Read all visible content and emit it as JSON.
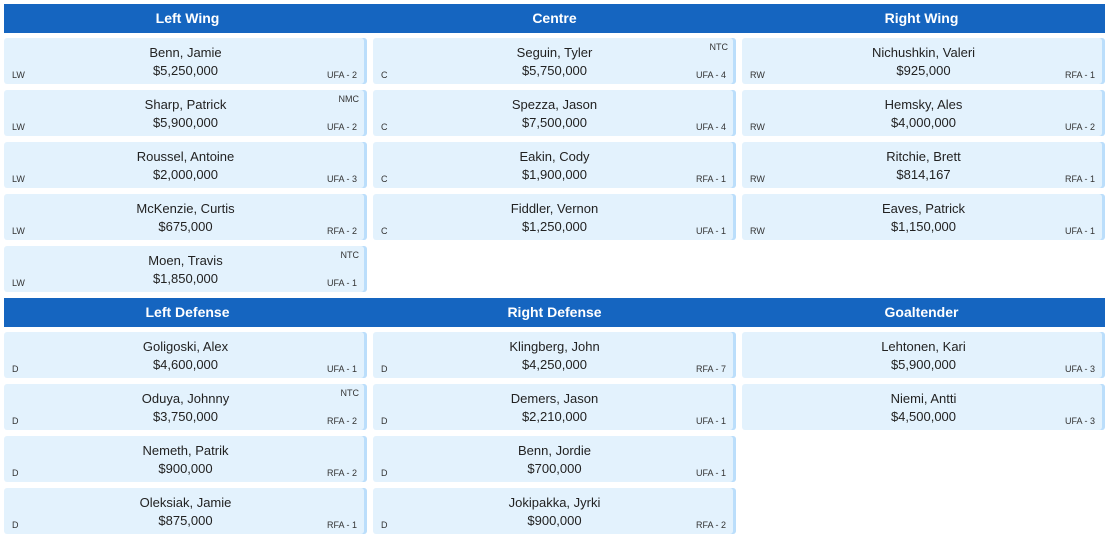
{
  "forwards": {
    "headers": [
      "Left Wing",
      "Centre",
      "Right Wing"
    ],
    "columns": [
      [
        {
          "name": "Benn, Jamie",
          "salary": "$5,250,000",
          "pos": "LW",
          "contract": "UFA - 2",
          "clause": ""
        },
        {
          "name": "Sharp, Patrick",
          "salary": "$5,900,000",
          "pos": "LW",
          "contract": "UFA - 2",
          "clause": "NMC"
        },
        {
          "name": "Roussel, Antoine",
          "salary": "$2,000,000",
          "pos": "LW",
          "contract": "UFA - 3",
          "clause": ""
        },
        {
          "name": "McKenzie, Curtis",
          "salary": "$675,000",
          "pos": "LW",
          "contract": "RFA - 2",
          "clause": ""
        },
        {
          "name": "Moen, Travis",
          "salary": "$1,850,000",
          "pos": "LW",
          "contract": "UFA - 1",
          "clause": "NTC"
        }
      ],
      [
        {
          "name": "Seguin, Tyler",
          "salary": "$5,750,000",
          "pos": "C",
          "contract": "UFA - 4",
          "clause": "NTC"
        },
        {
          "name": "Spezza, Jason",
          "salary": "$7,500,000",
          "pos": "C",
          "contract": "UFA - 4",
          "clause": ""
        },
        {
          "name": "Eakin, Cody",
          "salary": "$1,900,000",
          "pos": "C",
          "contract": "RFA - 1",
          "clause": ""
        },
        {
          "name": "Fiddler, Vernon",
          "salary": "$1,250,000",
          "pos": "C",
          "contract": "UFA - 1",
          "clause": ""
        }
      ],
      [
        {
          "name": "Nichushkin, Valeri",
          "salary": "$925,000",
          "pos": "RW",
          "contract": "RFA - 1",
          "clause": ""
        },
        {
          "name": "Hemsky, Ales",
          "salary": "$4,000,000",
          "pos": "RW",
          "contract": "UFA - 2",
          "clause": ""
        },
        {
          "name": "Ritchie, Brett",
          "salary": "$814,167",
          "pos": "RW",
          "contract": "RFA - 1",
          "clause": ""
        },
        {
          "name": "Eaves, Patrick",
          "salary": "$1,150,000",
          "pos": "RW",
          "contract": "UFA - 1",
          "clause": ""
        }
      ]
    ]
  },
  "defense": {
    "headers": [
      "Left Defense",
      "Right Defense",
      "Goaltender"
    ],
    "columns": [
      [
        {
          "name": "Goligoski, Alex",
          "salary": "$4,600,000",
          "pos": "D",
          "contract": "UFA - 1",
          "clause": ""
        },
        {
          "name": "Oduya, Johnny",
          "salary": "$3,750,000",
          "pos": "D",
          "contract": "RFA - 2",
          "clause": "NTC"
        },
        {
          "name": "Nemeth, Patrik",
          "salary": "$900,000",
          "pos": "D",
          "contract": "RFA - 2",
          "clause": ""
        },
        {
          "name": "Oleksiak, Jamie",
          "salary": "$875,000",
          "pos": "D",
          "contract": "RFA - 1",
          "clause": ""
        }
      ],
      [
        {
          "name": "Klingberg, John",
          "salary": "$4,250,000",
          "pos": "D",
          "contract": "RFA - 7",
          "clause": ""
        },
        {
          "name": "Demers, Jason",
          "salary": "$2,210,000",
          "pos": "D",
          "contract": "UFA - 1",
          "clause": ""
        },
        {
          "name": "Benn, Jordie",
          "salary": "$700,000",
          "pos": "D",
          "contract": "UFA - 1",
          "clause": ""
        },
        {
          "name": "Jokipakka, Jyrki",
          "salary": "$900,000",
          "pos": "D",
          "contract": "RFA - 2",
          "clause": ""
        }
      ],
      [
        {
          "name": "Lehtonen, Kari",
          "salary": "$5,900,000",
          "pos": "",
          "contract": "UFA - 3",
          "clause": ""
        },
        {
          "name": "Niemi, Antti",
          "salary": "$4,500,000",
          "pos": "",
          "contract": "UFA - 3",
          "clause": ""
        }
      ]
    ]
  },
  "colors": {
    "header": "#1565c0",
    "card": "#e3f2fd"
  }
}
